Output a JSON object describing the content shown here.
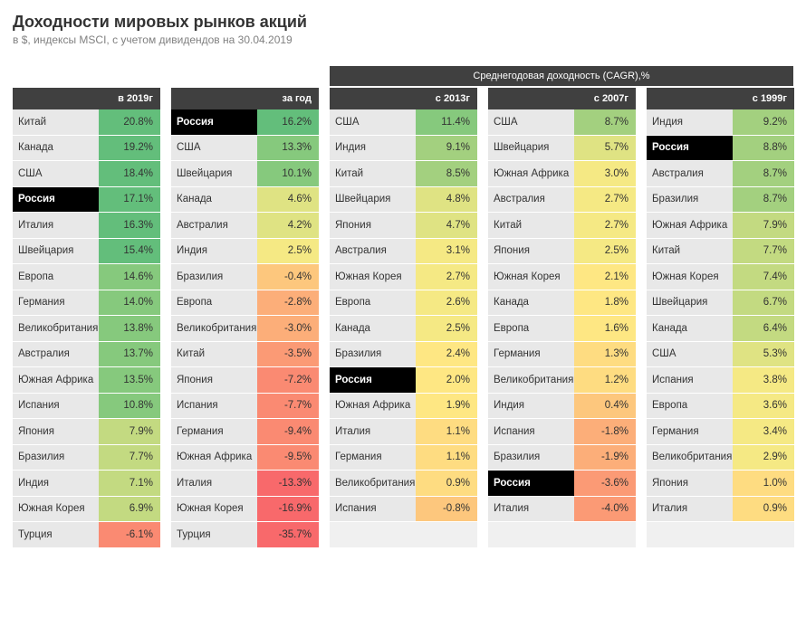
{
  "title": "Доходности мировых рынков акций",
  "subtitle": "в $, индексы MSCI, с учетом дивидендов на 30.04.2019",
  "group_header": "Среднегодовая доходность (CAGR),%",
  "highlight_country": "Россия",
  "colors": {
    "header_bg": "#404040",
    "header_fg": "#ffffff",
    "country_bg": "#e8e8e8",
    "highlight_bg": "#000000",
    "highlight_fg": "#ffffff",
    "blank_bg": "#f0f0f0"
  },
  "color_scale": [
    {
      "min": 15,
      "color": "#63be7b"
    },
    {
      "min": 10,
      "color": "#86c97d"
    },
    {
      "min": 8,
      "color": "#a3d07f"
    },
    {
      "min": 6,
      "color": "#c3da81"
    },
    {
      "min": 4,
      "color": "#dfe383"
    },
    {
      "min": 2.5,
      "color": "#f5e984"
    },
    {
      "min": 1.5,
      "color": "#fee783"
    },
    {
      "min": 0.5,
      "color": "#fedc81"
    },
    {
      "min": -1,
      "color": "#fdc77d"
    },
    {
      "min": -3,
      "color": "#fcae79"
    },
    {
      "min": -6,
      "color": "#fb9a75"
    },
    {
      "min": -12,
      "color": "#fa8a72"
    },
    {
      "min": -999,
      "color": "#f8696b"
    }
  ],
  "columns": [
    {
      "header": "в 2019г",
      "rows": [
        {
          "country": "Китай",
          "value": 20.8
        },
        {
          "country": "Канада",
          "value": 19.2
        },
        {
          "country": "США",
          "value": 18.4
        },
        {
          "country": "Россия",
          "value": 17.1
        },
        {
          "country": "Италия",
          "value": 16.3
        },
        {
          "country": "Швейцария",
          "value": 15.4
        },
        {
          "country": "Европа",
          "value": 14.6
        },
        {
          "country": "Германия",
          "value": 14.0
        },
        {
          "country": "Великобритания",
          "value": 13.8
        },
        {
          "country": "Австралия",
          "value": 13.7
        },
        {
          "country": "Южная Африка",
          "value": 13.5
        },
        {
          "country": "Испания",
          "value": 10.8
        },
        {
          "country": "Япония",
          "value": 7.9
        },
        {
          "country": "Бразилия",
          "value": 7.7
        },
        {
          "country": "Индия",
          "value": 7.1
        },
        {
          "country": "Южная Корея",
          "value": 6.9
        },
        {
          "country": "Турция",
          "value": -6.1
        }
      ]
    },
    {
      "header": "за год",
      "rows": [
        {
          "country": "Россия",
          "value": 16.2
        },
        {
          "country": "США",
          "value": 13.3
        },
        {
          "country": "Швейцария",
          "value": 10.1
        },
        {
          "country": "Канада",
          "value": 4.6
        },
        {
          "country": "Австралия",
          "value": 4.2
        },
        {
          "country": "Индия",
          "value": 2.5
        },
        {
          "country": "Бразилия",
          "value": -0.4
        },
        {
          "country": "Европа",
          "value": -2.8
        },
        {
          "country": "Великобритания",
          "value": -3.0
        },
        {
          "country": "Китай",
          "value": -3.5
        },
        {
          "country": "Япония",
          "value": -7.2
        },
        {
          "country": "Испания",
          "value": -7.7
        },
        {
          "country": "Германия",
          "value": -9.4
        },
        {
          "country": "Южная Африка",
          "value": -9.5
        },
        {
          "country": "Италия",
          "value": -13.3
        },
        {
          "country": "Южная Корея",
          "value": -16.9
        },
        {
          "country": "Турция",
          "value": -35.7
        }
      ]
    },
    {
      "header": "с 2013г",
      "rows": [
        {
          "country": "США",
          "value": 11.4
        },
        {
          "country": "Индия",
          "value": 9.1
        },
        {
          "country": "Китай",
          "value": 8.5
        },
        {
          "country": "Швейцария",
          "value": 4.8
        },
        {
          "country": "Япония",
          "value": 4.7
        },
        {
          "country": "Австралия",
          "value": 3.1
        },
        {
          "country": "Южная Корея",
          "value": 2.7
        },
        {
          "country": "Европа",
          "value": 2.6
        },
        {
          "country": "Канада",
          "value": 2.5
        },
        {
          "country": "Бразилия",
          "value": 2.4
        },
        {
          "country": "Россия",
          "value": 2.0
        },
        {
          "country": "Южная Африка",
          "value": 1.9
        },
        {
          "country": "Италия",
          "value": 1.1
        },
        {
          "country": "Германия",
          "value": 1.1
        },
        {
          "country": "Великобритания",
          "value": 0.9
        },
        {
          "country": "Испания",
          "value": -0.8
        },
        {
          "country": "Турция",
          "value": null
        }
      ]
    },
    {
      "header": "с 2007г",
      "rows": [
        {
          "country": "США",
          "value": 8.7
        },
        {
          "country": "Швейцария",
          "value": 5.7
        },
        {
          "country": "Южная Африка",
          "value": 3.0
        },
        {
          "country": "Австралия",
          "value": 2.7
        },
        {
          "country": "Китай",
          "value": 2.7
        },
        {
          "country": "Япония",
          "value": 2.5
        },
        {
          "country": "Южная Корея",
          "value": 2.1
        },
        {
          "country": "Канада",
          "value": 1.8
        },
        {
          "country": "Европа",
          "value": 1.6
        },
        {
          "country": "Германия",
          "value": 1.3
        },
        {
          "country": "Великобритания",
          "value": 1.2
        },
        {
          "country": "Индия",
          "value": 0.4
        },
        {
          "country": "Испания",
          "value": -1.8
        },
        {
          "country": "Бразилия",
          "value": -1.9
        },
        {
          "country": "Россия",
          "value": -3.6
        },
        {
          "country": "Италия",
          "value": -4.0
        },
        {
          "country": "Турция",
          "value": null
        }
      ]
    },
    {
      "header": "с 1999г",
      "rows": [
        {
          "country": "Индия",
          "value": 9.2
        },
        {
          "country": "Россия",
          "value": 8.8
        },
        {
          "country": "Австралия",
          "value": 8.7
        },
        {
          "country": "Бразилия",
          "value": 8.7
        },
        {
          "country": "Южная Африка",
          "value": 7.9
        },
        {
          "country": "Китай",
          "value": 7.7
        },
        {
          "country": "Южная Корея",
          "value": 7.4
        },
        {
          "country": "Швейцария",
          "value": 6.7
        },
        {
          "country": "Канада",
          "value": 6.4
        },
        {
          "country": "США",
          "value": 5.3
        },
        {
          "country": "Испания",
          "value": 3.8
        },
        {
          "country": "Европа",
          "value": 3.6
        },
        {
          "country": "Германия",
          "value": 3.4
        },
        {
          "country": "Великобритания",
          "value": 2.9
        },
        {
          "country": "Япония",
          "value": 1.0
        },
        {
          "country": "Италия",
          "value": 0.9
        },
        {
          "country": "Турция",
          "value": null
        }
      ]
    }
  ]
}
